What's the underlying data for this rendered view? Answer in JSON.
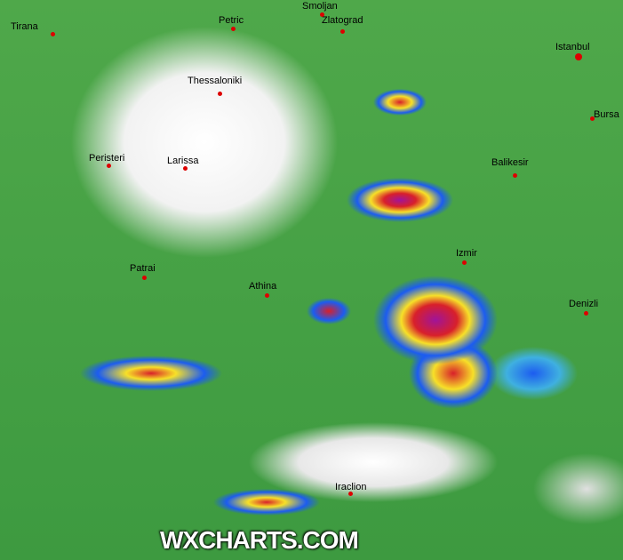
{
  "map": {
    "watermark": "WXCHARTS.COM",
    "cities": [
      {
        "name": "Tirana"
      },
      {
        "name": "Petric"
      },
      {
        "name": "Smoljan"
      },
      {
        "name": "Zlatograd"
      },
      {
        "name": "Istanbul"
      },
      {
        "name": "Thessaloniki"
      },
      {
        "name": "Bursa"
      },
      {
        "name": "Peristeri"
      },
      {
        "name": "Larissa"
      },
      {
        "name": "Balikesir"
      },
      {
        "name": "Izmir"
      },
      {
        "name": "Patrai"
      },
      {
        "name": "Athina"
      },
      {
        "name": "Denizli"
      },
      {
        "name": "Iraclion"
      }
    ],
    "colors": {
      "light": "#3d9a40",
      "moderate": "#1c5cf0",
      "heavy": "#f7e028",
      "very_heavy": "#d8202a",
      "extreme": "#a0149a"
    }
  }
}
